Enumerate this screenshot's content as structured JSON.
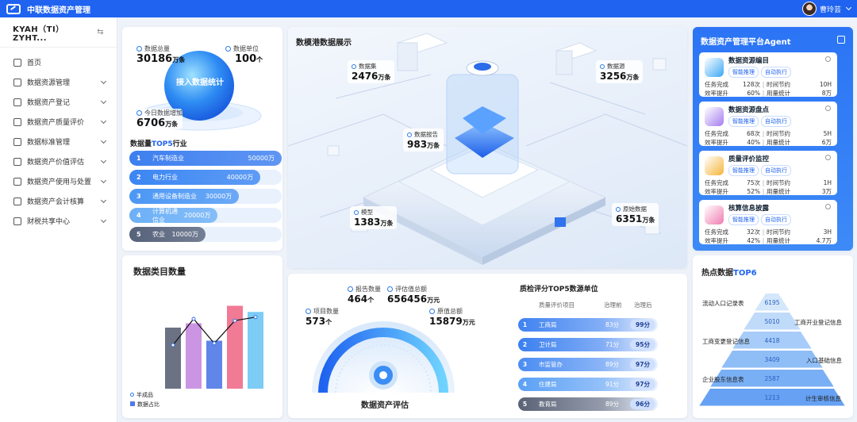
{
  "app": {
    "title": "中联数据资产管理",
    "user": "曹玲芸"
  },
  "sidebar": {
    "org": "KYAH（TI）ZYHT...",
    "items": [
      {
        "label": "首页",
        "expand": false
      },
      {
        "label": "数据资源管理",
        "expand": true
      },
      {
        "label": "数据资产登记",
        "expand": true
      },
      {
        "label": "数据资产质量评价",
        "expand": true
      },
      {
        "label": "数据标准管理",
        "expand": true
      },
      {
        "label": "数据资产价值评估",
        "expand": true
      },
      {
        "label": "数据资产使用与处置",
        "expand": true
      },
      {
        "label": "数据资产会计核算",
        "expand": true
      },
      {
        "label": "财税共享中心",
        "expand": true
      }
    ]
  },
  "stats": {
    "center": "接入数据统计",
    "total": {
      "label": "数据总量",
      "value": "30186",
      "unit": "万条"
    },
    "units": {
      "label": "数据单位",
      "value": "100",
      "unit": "个"
    },
    "today": {
      "label": "今日数据增加",
      "value": "6706",
      "unit": "万条"
    }
  },
  "top5": {
    "title_a": "数据量",
    "title_hl": "TOP5",
    "title_b": "行业",
    "items": [
      {
        "n": "1",
        "name": "汽车制造业",
        "value": "50000万",
        "frac": 1.0,
        "color": "#3d7ff0"
      },
      {
        "n": "2",
        "name": "电力行业",
        "value": "40000万",
        "frac": 0.86,
        "color": "#3b86f3"
      },
      {
        "n": "3",
        "name": "通用设备制造业",
        "value": "30000万",
        "frac": 0.72,
        "color": "#4b97f5"
      },
      {
        "n": "4",
        "name": "计算机通信业",
        "value": "20000万",
        "frac": 0.58,
        "color": "#6cb0f7"
      },
      {
        "n": "5",
        "name": "农业",
        "value": "10000万",
        "frac": 0.5,
        "color": "#56627a"
      }
    ]
  },
  "categories": {
    "title": "数据类目数量",
    "legend": [
      "半成品",
      "数据占比"
    ],
    "chart_data": {
      "type": "bar",
      "series": [
        {
          "name": "数据占比",
          "values": [
            70,
            75,
            55,
            95,
            88
          ]
        },
        {
          "name": "半成品",
          "values": [
            50,
            80,
            52,
            78,
            82
          ]
        }
      ],
      "colors": [
        "#5b6375",
        "#c58ae0",
        "#4f79e8",
        "#ef6c88",
        "#6ec6f4"
      ],
      "ylim": [
        0,
        100
      ]
    }
  },
  "center": {
    "title": "数模港数据展示",
    "labels": [
      {
        "t": "数据集",
        "v": "2476",
        "u": "万条"
      },
      {
        "t": "数据源",
        "v": "3256",
        "u": "万条"
      },
      {
        "t": "数据报告",
        "v": "983",
        "u": "万条"
      },
      {
        "t": "模型",
        "v": "1383",
        "u": "万条"
      },
      {
        "t": "原始数据",
        "v": "6351",
        "u": "万条"
      }
    ]
  },
  "valuation": {
    "title": "数据资产评估",
    "items": [
      {
        "t": "报告数量",
        "v": "464",
        "u": "个"
      },
      {
        "t": "评估值总额",
        "v": "656456",
        "u": "万元"
      },
      {
        "t": "项目数量",
        "v": "573",
        "u": "个"
      },
      {
        "t": "原值总额",
        "v": "15879",
        "u": "万元"
      }
    ]
  },
  "quality": {
    "title": "质检评分TOP5数源单位",
    "headers": [
      "质量评价项目",
      "治理前",
      "治理后"
    ],
    "items": [
      {
        "n": "1",
        "name": "工商局",
        "before": "83分",
        "after": "99分",
        "frac": 1.0,
        "color": "#3f82f1"
      },
      {
        "n": "2",
        "name": "卫计局",
        "before": "71分",
        "after": "95分",
        "frac": 1.0,
        "color": "#3a7ff0"
      },
      {
        "n": "3",
        "name": "市监管办",
        "before": "89分",
        "after": "97分",
        "frac": 1.0,
        "color": "#4a8cf2"
      },
      {
        "n": "4",
        "name": "住建局",
        "before": "91分",
        "after": "97分",
        "frac": 1.0,
        "color": "#5aa0f5"
      },
      {
        "n": "5",
        "name": "教育局",
        "before": "89分",
        "after": "96分",
        "frac": 1.0,
        "color": "#5a6275"
      }
    ]
  },
  "agent": {
    "title": "数据资产管理平台Agent",
    "pill1": "智能推理",
    "pill2": "自动执行",
    "items": [
      {
        "name": "数据资源编目",
        "task": "任务完成",
        "count": "128次",
        "saved": "时间节约",
        "time": "10H",
        "eff": "效率提升",
        "pct": "60%",
        "cost": "用量统计",
        "amt": "8万",
        "c": "#3aa7f6"
      },
      {
        "name": "数据资源盘点",
        "task": "任务完成",
        "count": "68次",
        "saved": "时间节约",
        "time": "5H",
        "eff": "效率提升",
        "pct": "40%",
        "cost": "用量统计",
        "amt": "6万",
        "c": "#a57cf0"
      },
      {
        "name": "质量评价监控",
        "task": "任务完成",
        "count": "75次",
        "saved": "时间节约",
        "time": "1H",
        "eff": "效率提升",
        "pct": "52%",
        "cost": "用量统计",
        "amt": "3万",
        "c": "#f5b53b"
      },
      {
        "name": "核算信息披露",
        "task": "任务完成",
        "count": "32次",
        "saved": "时间节约",
        "time": "3H",
        "eff": "效率提升",
        "pct": "42%",
        "cost": "用量统计",
        "amt": "4.7万",
        "c": "#f07bb0"
      }
    ]
  },
  "hot": {
    "title_a": "热点数据",
    "title_hl": "TOP6",
    "items": [
      {
        "name": "流动人口记录表",
        "v": "6195"
      },
      {
        "name": "工商开业登记信息",
        "v": "5010"
      },
      {
        "name": "工商变更登记信息",
        "v": "4418"
      },
      {
        "name": "入口基础信息",
        "v": "3409"
      },
      {
        "name": "企业股东信息表",
        "v": "2587"
      },
      {
        "name": "计生审核信息",
        "v": "1213"
      }
    ]
  }
}
